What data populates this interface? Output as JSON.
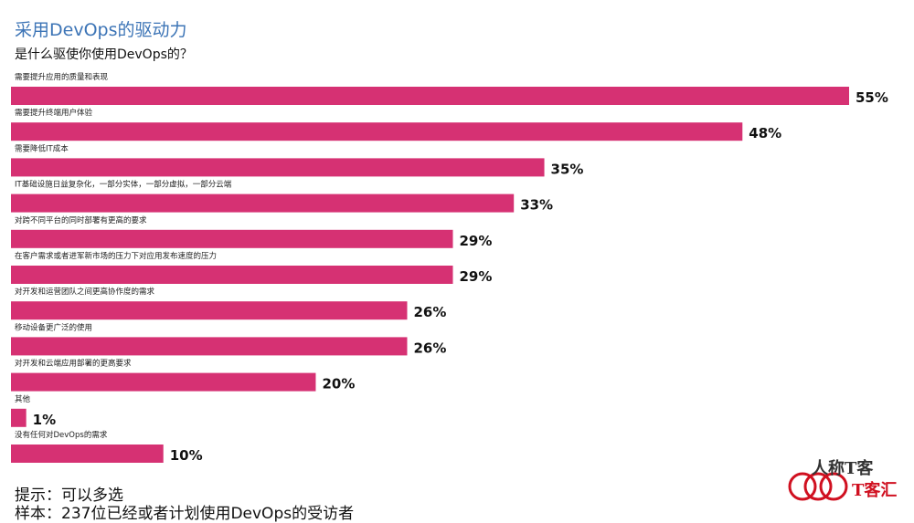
{
  "chart_data": {
    "type": "bar",
    "orientation": "horizontal",
    "title": "采用DevOps的驱动力",
    "subtitle": "是什么驱使你使用DevOps的？",
    "categories": [
      "需要提升应用的质量和表现",
      "需要提升终端用户体验",
      "需要降低IT成本",
      "IT基础设施日益复杂化，一部分实体，一部分虚拟，一部分云端",
      "对跨不同平台的同时部署有更高的要求",
      "在客户需求或者进军新市场的压力下对应用发布速度的压力",
      "对开发和运营团队之间更高协作度的需求",
      "移动设备更广泛的使用",
      "对开发和云端应用部署的更高要求",
      "其他",
      "没有任何对DevOps的需求"
    ],
    "values": [
      55,
      48,
      35,
      33,
      29,
      29,
      26,
      26,
      20,
      1,
      10
    ],
    "value_labels": [
      "55%",
      "48%",
      "35%",
      "33%",
      "29%",
      "29%",
      "26%",
      "26%",
      "20%",
      "1%",
      "10%"
    ],
    "bar_color": "#d63173",
    "xlim": [
      0,
      55
    ],
    "grid": false,
    "legend": "none"
  },
  "notes": {
    "hint": "提示：可以多选",
    "sample": "样本：237位已经或者计划使用DevOps的受访者"
  },
  "watermark": {
    "text1": "人称T客",
    "text2": "T客汇",
    "color": "#d01020"
  }
}
